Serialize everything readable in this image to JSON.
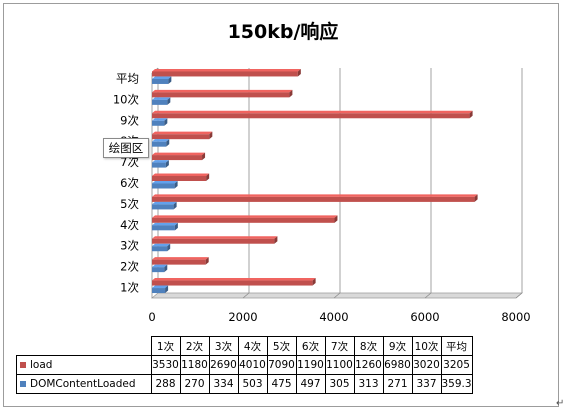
{
  "chart_data": {
    "type": "bar",
    "orientation": "horizontal",
    "title": "150kb/响应",
    "categories": [
      "1次",
      "2次",
      "3次",
      "4次",
      "5次",
      "6次",
      "7次",
      "8次",
      "9次",
      "10次",
      "平均"
    ],
    "series": [
      {
        "name": "load",
        "color": "#c0504d",
        "values": [
          3530,
          1180,
          2690,
          4010,
          7090,
          1190,
          1100,
          1260,
          6980,
          3020,
          3205
        ],
        "value_labels": [
          "3530",
          "1180",
          "2690",
          "4010",
          "7090",
          "1190",
          "1100",
          "1260",
          "6980",
          "3020",
          "3205"
        ]
      },
      {
        "name": "DOMContentLoaded",
        "color": "#4f81bd",
        "values": [
          288,
          270,
          334,
          503,
          475,
          497,
          305,
          313,
          271,
          337,
          359.3
        ],
        "value_labels": [
          "288",
          "270",
          "334",
          "503",
          "475",
          "497",
          "305",
          "313",
          "271",
          "337",
          "359.3"
        ]
      }
    ],
    "xlim": [
      0,
      8000
    ],
    "x_ticks": [
      0,
      2000,
      4000,
      6000,
      8000
    ],
    "x_tick_labels": [
      "0",
      "2000",
      "4000",
      "6000",
      "8000"
    ],
    "gridlines": true,
    "data_table": true
  },
  "tooltip": "绘图区"
}
